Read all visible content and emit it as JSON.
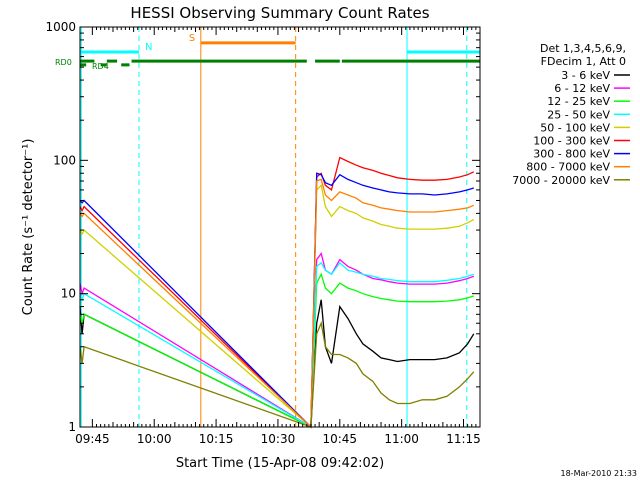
{
  "chart_data": {
    "type": "line",
    "title": "HESSI Observing Summary Count Rates",
    "xlabel": "Start Time (15-Apr-08 09:42:02)",
    "ylabel": "Count Rate (s⁻¹ detector⁻¹)",
    "y_scale": "log",
    "ylim": [
      1,
      1000
    ],
    "x_unit": "minutes after 09:42:02",
    "xlim": [
      0,
      97
    ],
    "x_tick_labels": [
      "09:45",
      "10:00",
      "10:15",
      "10:30",
      "10:45",
      "11:00",
      "11:15"
    ],
    "y_tick_labels": [
      "1",
      "10",
      "100",
      "1000"
    ],
    "legend_header": [
      "Det 1,3,4,5,6,9,",
      "FDecim 1, Att 0"
    ],
    "legend_placement": "right",
    "footer_date": "18-Mar-2010 21:33",
    "series": [
      {
        "name": "3 - 6 keV",
        "color": "#000000",
        "x": [
          0,
          0.5,
          1,
          56,
          57.4,
          58.5,
          59.5,
          61,
          63,
          65,
          67,
          68.6,
          71,
          73,
          75,
          77,
          80,
          83,
          86,
          89,
          92,
          94,
          95.5
        ],
        "y": [
          8,
          5,
          7,
          1,
          6,
          9,
          4,
          3,
          8,
          6.5,
          5,
          4.2,
          3.7,
          3.3,
          3.2,
          3.1,
          3.2,
          3.2,
          3.2,
          3.3,
          3.6,
          4.2,
          5
        ]
      },
      {
        "name": "6 - 12 keV",
        "color": "#ff00ff",
        "x": [
          0,
          0.5,
          1,
          56,
          57.4,
          58.5,
          59.5,
          61,
          63,
          65,
          67,
          68.6,
          71,
          73,
          75,
          77,
          80,
          83,
          86,
          89,
          92,
          94,
          95.5
        ],
        "y": [
          12,
          10,
          11,
          1,
          18,
          20,
          15,
          14,
          18,
          16,
          15,
          14,
          13,
          12.7,
          12.3,
          12,
          11.8,
          11.8,
          11.8,
          12,
          12.5,
          13,
          13.5
        ]
      },
      {
        "name": "12 - 25 keV",
        "color": "#00ff00",
        "x": [
          0,
          0.5,
          1,
          56,
          57.4,
          58.5,
          59.5,
          61,
          63,
          65,
          67,
          68.6,
          71,
          73,
          75,
          77,
          80,
          83,
          86,
          89,
          92,
          94,
          95.5
        ],
        "y": [
          7,
          6,
          7,
          1,
          12,
          14,
          11,
          10,
          12,
          11,
          10.5,
          10,
          9.5,
          9.2,
          9,
          8.8,
          8.7,
          8.7,
          8.7,
          8.8,
          9,
          9.3,
          9.6
        ]
      },
      {
        "name": "25 - 50 keV",
        "color": "#00ffff",
        "x": [
          0,
          0.5,
          1,
          56,
          57.4,
          58.5,
          59.5,
          61,
          63,
          65,
          67,
          68.6,
          71,
          73,
          75,
          77,
          80,
          83,
          86,
          89,
          92,
          94,
          95.5
        ],
        "y": [
          10,
          9,
          10,
          1,
          16,
          17,
          15,
          14,
          17,
          15,
          14.5,
          14,
          13.5,
          13,
          12.8,
          12.5,
          12.3,
          12.3,
          12.3,
          12.6,
          13,
          13.5,
          14
        ]
      },
      {
        "name": "50 - 100 keV",
        "color": "#d0d000",
        "x": [
          0,
          0.5,
          1,
          56,
          57.4,
          58.5,
          59.5,
          61,
          63,
          65,
          67,
          68.6,
          71,
          73,
          75,
          77,
          80,
          83,
          86,
          89,
          92,
          94,
          95.5
        ],
        "y": [
          30,
          28,
          30,
          1,
          60,
          65,
          45,
          38,
          45,
          42,
          40,
          37,
          35,
          33,
          32,
          31,
          30.5,
          30.5,
          30.5,
          31,
          32,
          34,
          36
        ]
      },
      {
        "name": "100 - 300 keV",
        "color": "#ff0000",
        "x": [
          0,
          0.5,
          1,
          56,
          57.4,
          58.5,
          59.5,
          61,
          63,
          65,
          67,
          68.6,
          71,
          73,
          75,
          77,
          80,
          83,
          86,
          89,
          92,
          94,
          95.5
        ],
        "y": [
          45,
          42,
          45,
          1,
          75,
          80,
          65,
          60,
          105,
          98,
          92,
          88,
          84,
          80,
          77,
          74,
          72,
          71,
          71,
          72,
          75,
          78,
          82
        ]
      },
      {
        "name": "300 - 800 keV",
        "color": "#0000ff",
        "x": [
          0,
          0.5,
          1,
          56,
          57.4,
          58.5,
          59.5,
          61,
          63,
          65,
          67,
          68.6,
          71,
          73,
          75,
          77,
          80,
          83,
          86,
          89,
          92,
          94,
          95.5
        ],
        "y": [
          50,
          48,
          50,
          1,
          80,
          78,
          68,
          65,
          78,
          72,
          68,
          65,
          62,
          60,
          58,
          57,
          56,
          56,
          55,
          56,
          58,
          60,
          62
        ]
      },
      {
        "name": "800 - 7000 keV",
        "color": "#ff8000",
        "x": [
          0,
          0.5,
          1,
          56,
          57.4,
          58.5,
          59.5,
          61,
          63,
          65,
          67,
          68.6,
          71,
          73,
          75,
          77,
          80,
          83,
          86,
          89,
          92,
          94,
          95.5
        ],
        "y": [
          40,
          38,
          40,
          1,
          70,
          72,
          55,
          50,
          58,
          55,
          52,
          48,
          46,
          44,
          43,
          42,
          41,
          41,
          41,
          42,
          43,
          44,
          46
        ]
      },
      {
        "name": "7000 - 20000 keV",
        "color": "#808000",
        "x": [
          0,
          0.5,
          1,
          56,
          57.4,
          58.5,
          59.5,
          61,
          63,
          65,
          67,
          68.6,
          71,
          73,
          75,
          77,
          80,
          83,
          86,
          89,
          92,
          94,
          95.5
        ],
        "y": [
          4,
          3,
          4,
          1,
          5,
          6,
          4,
          3.5,
          3.5,
          3.3,
          3,
          2.5,
          2.2,
          1.8,
          1.6,
          1.5,
          1.5,
          1.6,
          1.6,
          1.7,
          2,
          2.3,
          2.6
        ]
      }
    ],
    "time_markers": [
      {
        "x": 0.3,
        "style": "solid",
        "color": "#00ffff"
      },
      {
        "x": 14.3,
        "style": "dashed",
        "color": "#00ffff"
      },
      {
        "x": 29.3,
        "style": "solid",
        "color": "#ff8000"
      },
      {
        "x": 52.3,
        "style": "dashed",
        "color": "#ff8000"
      },
      {
        "x": 79.3,
        "style": "solid",
        "color": "#00ffff"
      },
      {
        "x": 93.8,
        "style": "dashed",
        "color": "#00ffff"
      }
    ],
    "interval_bars": [
      {
        "label": "N",
        "color": "#00ffff",
        "y": 650,
        "segments": [
          [
            0,
            14.3
          ],
          [
            79.3,
            97
          ]
        ]
      },
      {
        "label": "S",
        "color": "#ff8000",
        "y": 760,
        "segments": [
          [
            29.3,
            52.3
          ]
        ]
      },
      {
        "label": "RD0",
        "color": "#008000",
        "y": 555,
        "segments": [
          [
            0,
            3.5
          ],
          [
            6.5,
            9
          ],
          [
            12.5,
            55
          ],
          [
            57,
            63
          ],
          [
            63.5,
            97
          ]
        ]
      },
      {
        "label": "RD4",
        "color": "#008000",
        "y": 520,
        "segments": [
          [
            0,
            1.5
          ],
          [
            5,
            6.5
          ],
          [
            10,
            12
          ]
        ]
      }
    ]
  }
}
